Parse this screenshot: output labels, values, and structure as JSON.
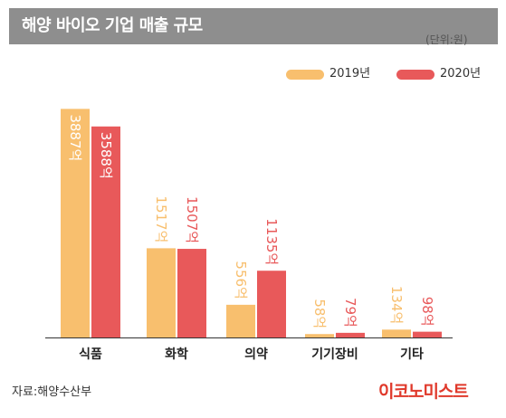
{
  "header": {
    "title": "해양 바이오 기업 매출 규모",
    "unit": "(단위:원)"
  },
  "legend": [
    {
      "label": "2019년",
      "color": "#f8bf6e"
    },
    {
      "label": "2020년",
      "color": "#e8595a"
    }
  ],
  "chart_data": {
    "type": "bar",
    "title": "해양 바이오 기업 매출 규모",
    "categories": [
      "식품",
      "화학",
      "의약",
      "기기장비",
      "기타"
    ],
    "series": [
      {
        "name": "2019년",
        "values": [
          3887,
          1517,
          556,
          58,
          134
        ],
        "labels": [
          "3887억",
          "1517억",
          "556억",
          "58억",
          "134억"
        ],
        "color": "#f8bf6e"
      },
      {
        "name": "2020년",
        "values": [
          3588,
          1507,
          1135,
          79,
          98
        ],
        "labels": [
          "3588억",
          "1507억",
          "1135억",
          "79억",
          "98억"
        ],
        "color": "#e8595a"
      }
    ],
    "ylim": [
      0,
      4200
    ],
    "grid": false,
    "legend_position": "top-right"
  },
  "footer": {
    "source": "자료:해양수산부",
    "logo": "이코노미스트"
  }
}
